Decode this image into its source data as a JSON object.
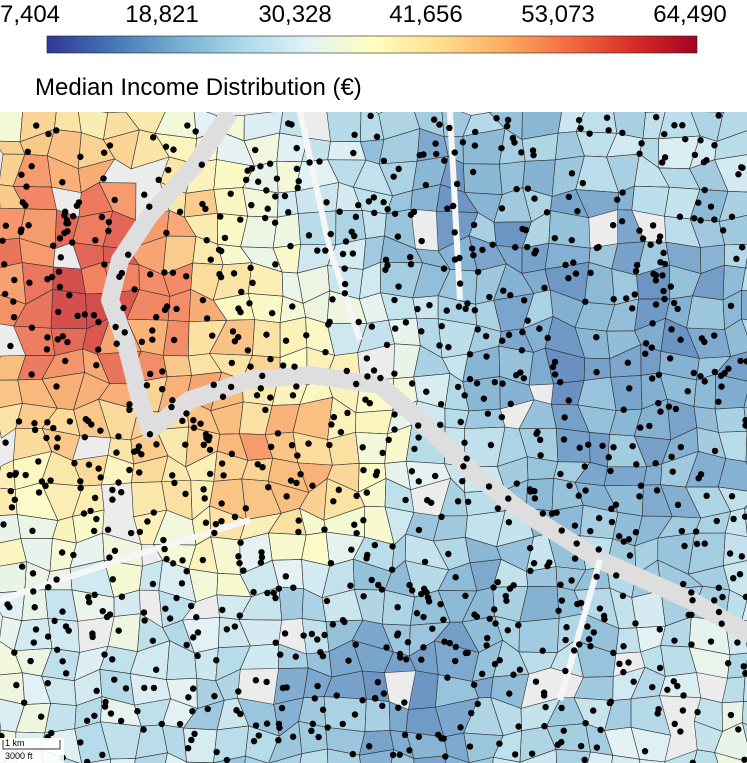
{
  "legend": {
    "title": "Median Income Distribution (€)",
    "ticks": [
      {
        "value": 7404,
        "label": "7,404"
      },
      {
        "value": 18821,
        "label": "18,821"
      },
      {
        "value": 30328,
        "label": "30,328"
      },
      {
        "value": 41656,
        "label": "41,656"
      },
      {
        "value": 53073,
        "label": "53,073"
      },
      {
        "value": 64490,
        "label": "64,490"
      }
    ],
    "colormap": [
      "#313695",
      "#4575b4",
      "#74add1",
      "#abd9e9",
      "#e0f3f8",
      "#ffffbf",
      "#fee090",
      "#fdae61",
      "#f46d43",
      "#d73027",
      "#a50026"
    ]
  },
  "scale": {
    "metric": "1 km",
    "imperial": "3000 ft"
  }
}
